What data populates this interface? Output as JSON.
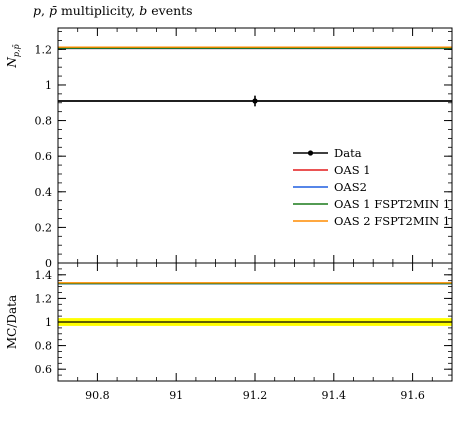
{
  "title_parts": [
    {
      "text": "p",
      "italic": true
    },
    {
      "text": ", ",
      "italic": false
    },
    {
      "text": "p̄",
      "italic": true
    },
    {
      "text": " multiplicity, ",
      "italic": false
    },
    {
      "text": "b",
      "italic": true
    },
    {
      "text": " events",
      "italic": false
    }
  ],
  "colors": {
    "data": "#000000",
    "oas1": "#e41a1c",
    "oas2": "#1f5fe0",
    "oas1_fspt": "#1a7a1a",
    "oas2_fspt": "#ff8c00",
    "band": "#ffff00"
  },
  "chart_data": [
    {
      "type": "line",
      "panel": "main",
      "ylabel": "N_{p,p̄}",
      "xlim": [
        90.7,
        91.7
      ],
      "ylim": [
        0,
        1.32
      ],
      "yticks": [
        0,
        0.2,
        0.4,
        0.6,
        0.8,
        1,
        1.2
      ],
      "ytick_labels": [
        "0",
        "0.2",
        "0.4",
        "0.6",
        "0.8",
        "1",
        "1.2"
      ],
      "data": {
        "name": "Data",
        "x": 91.2,
        "y": 0.91,
        "yerr": 0.03,
        "xerr": [
          90.7,
          91.7
        ]
      },
      "series": [
        {
          "name": "OAS 1",
          "key": "oas1",
          "y": 1.205
        },
        {
          "name": "OAS2",
          "key": "oas2",
          "y": 1.205
        },
        {
          "name": "OAS 1 FSPT2MIN 1",
          "key": "oas1_fspt",
          "y": 1.207
        },
        {
          "name": "OAS 2 FSPT2MIN 1",
          "key": "oas2_fspt",
          "y": 1.212
        }
      ],
      "legend": {
        "placement": "right-middle",
        "entries": [
          {
            "label": "Data",
            "key": "data",
            "marker": true
          },
          {
            "label": "OAS 1",
            "key": "oas1"
          },
          {
            "label": "OAS2",
            "key": "oas2"
          },
          {
            "label": "OAS 1 FSPT2MIN 1",
            "key": "oas1_fspt"
          },
          {
            "label": "OAS 2 FSPT2MIN 1",
            "key": "oas2_fspt"
          }
        ]
      }
    },
    {
      "type": "line",
      "panel": "ratio",
      "ylabel": "MC/Data",
      "xlim": [
        90.7,
        91.7
      ],
      "ylim": [
        0.5,
        1.5
      ],
      "yticks": [
        0.6,
        0.8,
        1,
        1.2,
        1.4
      ],
      "ytick_labels": [
        "0.6",
        "0.8",
        "1",
        "1.2",
        "1.4"
      ],
      "xticks": [
        90.8,
        91,
        91.2,
        91.4,
        91.6
      ],
      "xtick_labels": [
        "90.8",
        "91",
        "91.2",
        "91.4",
        "91.6"
      ],
      "band": {
        "center": 1.0,
        "low": 0.967,
        "high": 1.033
      },
      "series": [
        {
          "name": "OAS 1",
          "key": "oas1",
          "y": 1.324
        },
        {
          "name": "OAS2",
          "key": "oas2",
          "y": 1.324
        },
        {
          "name": "OAS 1 FSPT2MIN 1",
          "key": "oas1_fspt",
          "y": 1.326
        },
        {
          "name": "OAS 2 FSPT2MIN 1",
          "key": "oas2_fspt",
          "y": 1.332
        }
      ]
    }
  ]
}
